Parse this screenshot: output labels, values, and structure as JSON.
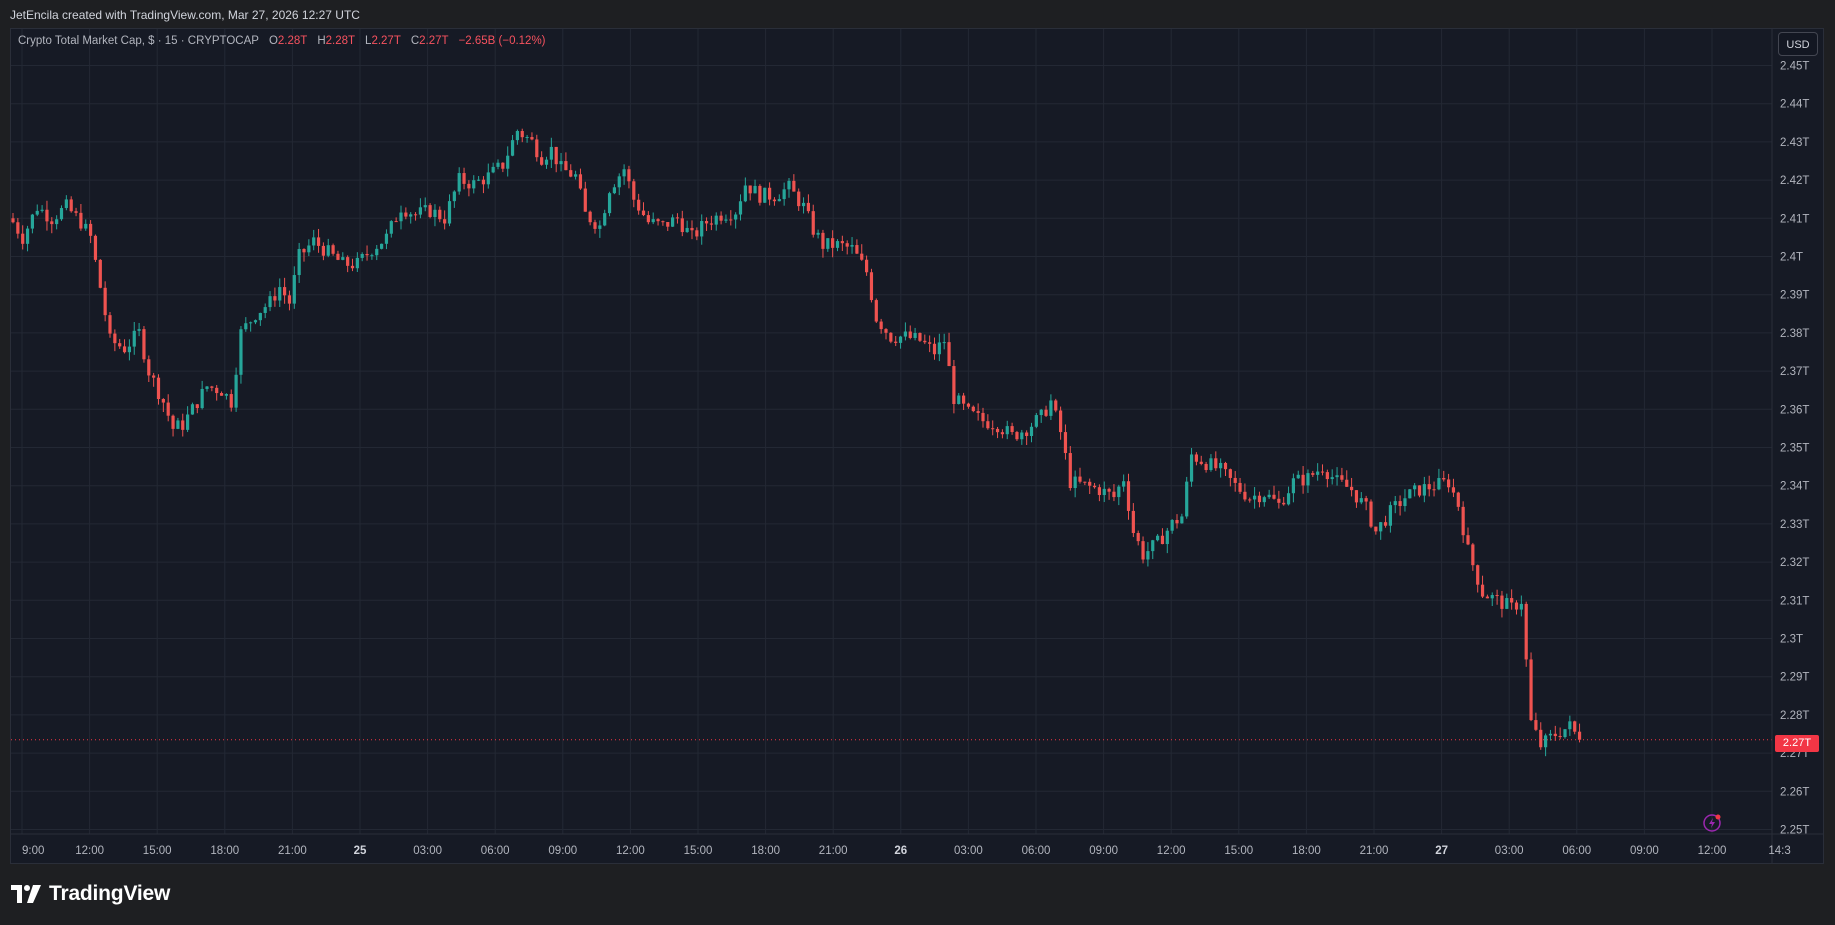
{
  "header": {
    "credit": "JetEncila created with TradingView.com, Mar 27, 2026 12:27 UTC"
  },
  "legend": {
    "symbol": "Crypto Total Market Cap, $ · 15 · CRYPTOCAP",
    "open_label": "O",
    "open_value": "2.28T",
    "high_label": "H",
    "high_value": "2.28T",
    "low_label": "L",
    "low_value": "2.27T",
    "close_label": "C",
    "close_value": "2.27T",
    "change": "−2.65B (−0.12%)"
  },
  "currency_button": "USD",
  "last_price_label": "2.27T",
  "branding": {
    "name": "TradingView"
  },
  "icons": {
    "logo": "tradingview-logo-icon",
    "alert": "lightning-alert-icon"
  },
  "colors": {
    "background": "#161a25",
    "up": "#26a69a",
    "down": "#ef5350",
    "grid": "#232834",
    "axis_text": "#b2b5be",
    "last_price": "#f23645"
  },
  "chart_data": {
    "type": "candlestick",
    "title": "Crypto Total Market Cap, $ · 15 · CRYPTOCAP",
    "interval": "15",
    "y_unit": "T",
    "ylim": [
      2.245,
      2.455
    ],
    "y_ticks": [
      "2.45T",
      "2.44T",
      "2.43T",
      "2.42T",
      "2.41T",
      "2.4T",
      "2.39T",
      "2.38T",
      "2.37T",
      "2.36T",
      "2.35T",
      "2.34T",
      "2.33T",
      "2.32T",
      "2.31T",
      "2.3T",
      "2.29T",
      "2.28T",
      "2.27T",
      "2.26T",
      "2.25T"
    ],
    "x_ticks": [
      "9:00",
      "12:00",
      "15:00",
      "18:00",
      "21:00",
      "25",
      "03:00",
      "06:00",
      "09:00",
      "12:00",
      "15:00",
      "18:00",
      "21:00",
      "26",
      "03:00",
      "06:00",
      "09:00",
      "12:00",
      "15:00",
      "18:00",
      "21:00",
      "27",
      "03:00",
      "06:00",
      "09:00",
      "12:00",
      "14:3"
    ],
    "bold_x_ticks": [
      "25",
      "26",
      "27"
    ],
    "last_price": 2.2735,
    "grid": true,
    "close_path": [
      [
        0,
        2.409
      ],
      [
        2,
        2.405
      ],
      [
        5,
        2.413
      ],
      [
        8,
        2.41
      ],
      [
        11,
        2.413
      ],
      [
        14,
        2.409
      ],
      [
        16,
        2.405
      ],
      [
        18,
        2.392
      ],
      [
        20,
        2.378
      ],
      [
        23,
        2.376
      ],
      [
        26,
        2.38
      ],
      [
        28,
        2.37
      ],
      [
        31,
        2.362
      ],
      [
        33,
        2.355
      ],
      [
        35,
        2.356
      ],
      [
        37,
        2.36
      ],
      [
        40,
        2.366
      ],
      [
        43,
        2.365
      ],
      [
        45,
        2.362
      ],
      [
        47,
        2.38
      ],
      [
        50,
        2.385
      ],
      [
        53,
        2.388
      ],
      [
        55,
        2.392
      ],
      [
        57,
        2.388
      ],
      [
        59,
        2.4
      ],
      [
        62,
        2.404
      ],
      [
        65,
        2.401
      ],
      [
        68,
        2.398
      ],
      [
        71,
        2.398
      ],
      [
        74,
        2.402
      ],
      [
        77,
        2.405
      ],
      [
        80,
        2.413
      ],
      [
        83,
        2.411
      ],
      [
        86,
        2.412
      ],
      [
        89,
        2.41
      ],
      [
        92,
        2.42
      ],
      [
        95,
        2.419
      ],
      [
        98,
        2.421
      ],
      [
        101,
        2.424
      ],
      [
        104,
        2.433
      ],
      [
        107,
        2.43
      ],
      [
        109,
        2.426
      ],
      [
        111,
        2.428
      ],
      [
        113,
        2.423
      ],
      [
        116,
        2.421
      ],
      [
        118,
        2.411
      ],
      [
        121,
        2.408
      ],
      [
        123,
        2.418
      ],
      [
        126,
        2.423
      ],
      [
        128,
        2.415
      ],
      [
        131,
        2.409
      ],
      [
        134,
        2.408
      ],
      [
        137,
        2.41
      ],
      [
        140,
        2.405
      ],
      [
        143,
        2.409
      ],
      [
        146,
        2.411
      ],
      [
        149,
        2.412
      ],
      [
        151,
        2.419
      ],
      [
        154,
        2.416
      ],
      [
        157,
        2.416
      ],
      [
        160,
        2.418
      ],
      [
        163,
        2.413
      ],
      [
        165,
        2.407
      ],
      [
        167,
        2.403
      ],
      [
        170,
        2.403
      ],
      [
        173,
        2.402
      ],
      [
        176,
        2.396
      ],
      [
        178,
        2.384
      ],
      [
        181,
        2.379
      ],
      [
        184,
        2.379
      ],
      [
        187,
        2.378
      ],
      [
        190,
        2.375
      ],
      [
        192,
        2.378
      ],
      [
        194,
        2.363
      ],
      [
        197,
        2.359
      ],
      [
        200,
        2.357
      ],
      [
        203,
        2.356
      ],
      [
        206,
        2.353
      ],
      [
        209,
        2.355
      ],
      [
        212,
        2.358
      ],
      [
        214,
        2.362
      ],
      [
        216,
        2.354
      ],
      [
        218,
        2.341
      ],
      [
        221,
        2.34
      ],
      [
        224,
        2.339
      ],
      [
        227,
        2.337
      ],
      [
        229,
        2.342
      ],
      [
        231,
        2.328
      ],
      [
        233,
        2.322
      ],
      [
        236,
        2.325
      ],
      [
        239,
        2.33
      ],
      [
        241,
        2.332
      ],
      [
        243,
        2.348
      ],
      [
        246,
        2.346
      ],
      [
        249,
        2.344
      ],
      [
        252,
        2.34
      ],
      [
        255,
        2.337
      ],
      [
        258,
        2.338
      ],
      [
        261,
        2.335
      ],
      [
        264,
        2.341
      ],
      [
        267,
        2.342
      ],
      [
        270,
        2.345
      ],
      [
        273,
        2.341
      ],
      [
        276,
        2.339
      ],
      [
        279,
        2.334
      ],
      [
        281,
        2.328
      ],
      [
        284,
        2.333
      ],
      [
        287,
        2.337
      ],
      [
        290,
        2.339
      ],
      [
        293,
        2.34
      ],
      [
        296,
        2.341
      ],
      [
        298,
        2.335
      ],
      [
        300,
        2.323
      ],
      [
        303,
        2.312
      ],
      [
        306,
        2.31
      ],
      [
        309,
        2.308
      ],
      [
        311,
        2.31
      ],
      [
        313,
        2.278
      ],
      [
        315,
        2.272
      ],
      [
        318,
        2.275
      ],
      [
        321,
        2.277
      ],
      [
        323,
        2.2735
      ]
    ]
  }
}
